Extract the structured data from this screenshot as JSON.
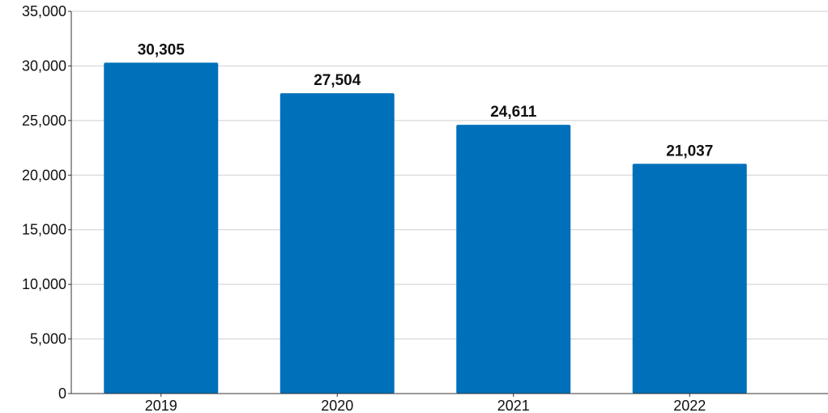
{
  "chart_data": {
    "type": "bar",
    "title": "",
    "xlabel": "",
    "ylabel": "",
    "categories": [
      "2019",
      "2020",
      "2021",
      "2022"
    ],
    "values": [
      30305,
      27504,
      24611,
      21037
    ],
    "data_labels": [
      "30,305",
      "27,504",
      "24,611",
      "21,037"
    ],
    "y_ticks": [
      0,
      5000,
      10000,
      15000,
      20000,
      25000,
      30000,
      35000
    ],
    "y_tick_labels": [
      "0",
      "5,000",
      "10,000",
      "15,000",
      "20,000",
      "25,000",
      "30,000",
      "35,000"
    ],
    "ylim": [
      0,
      35000
    ],
    "grid": true,
    "legend": "none",
    "colors": {
      "bar": "#0070BA",
      "grid": "#CFCFCF",
      "axis": "#333333"
    }
  }
}
